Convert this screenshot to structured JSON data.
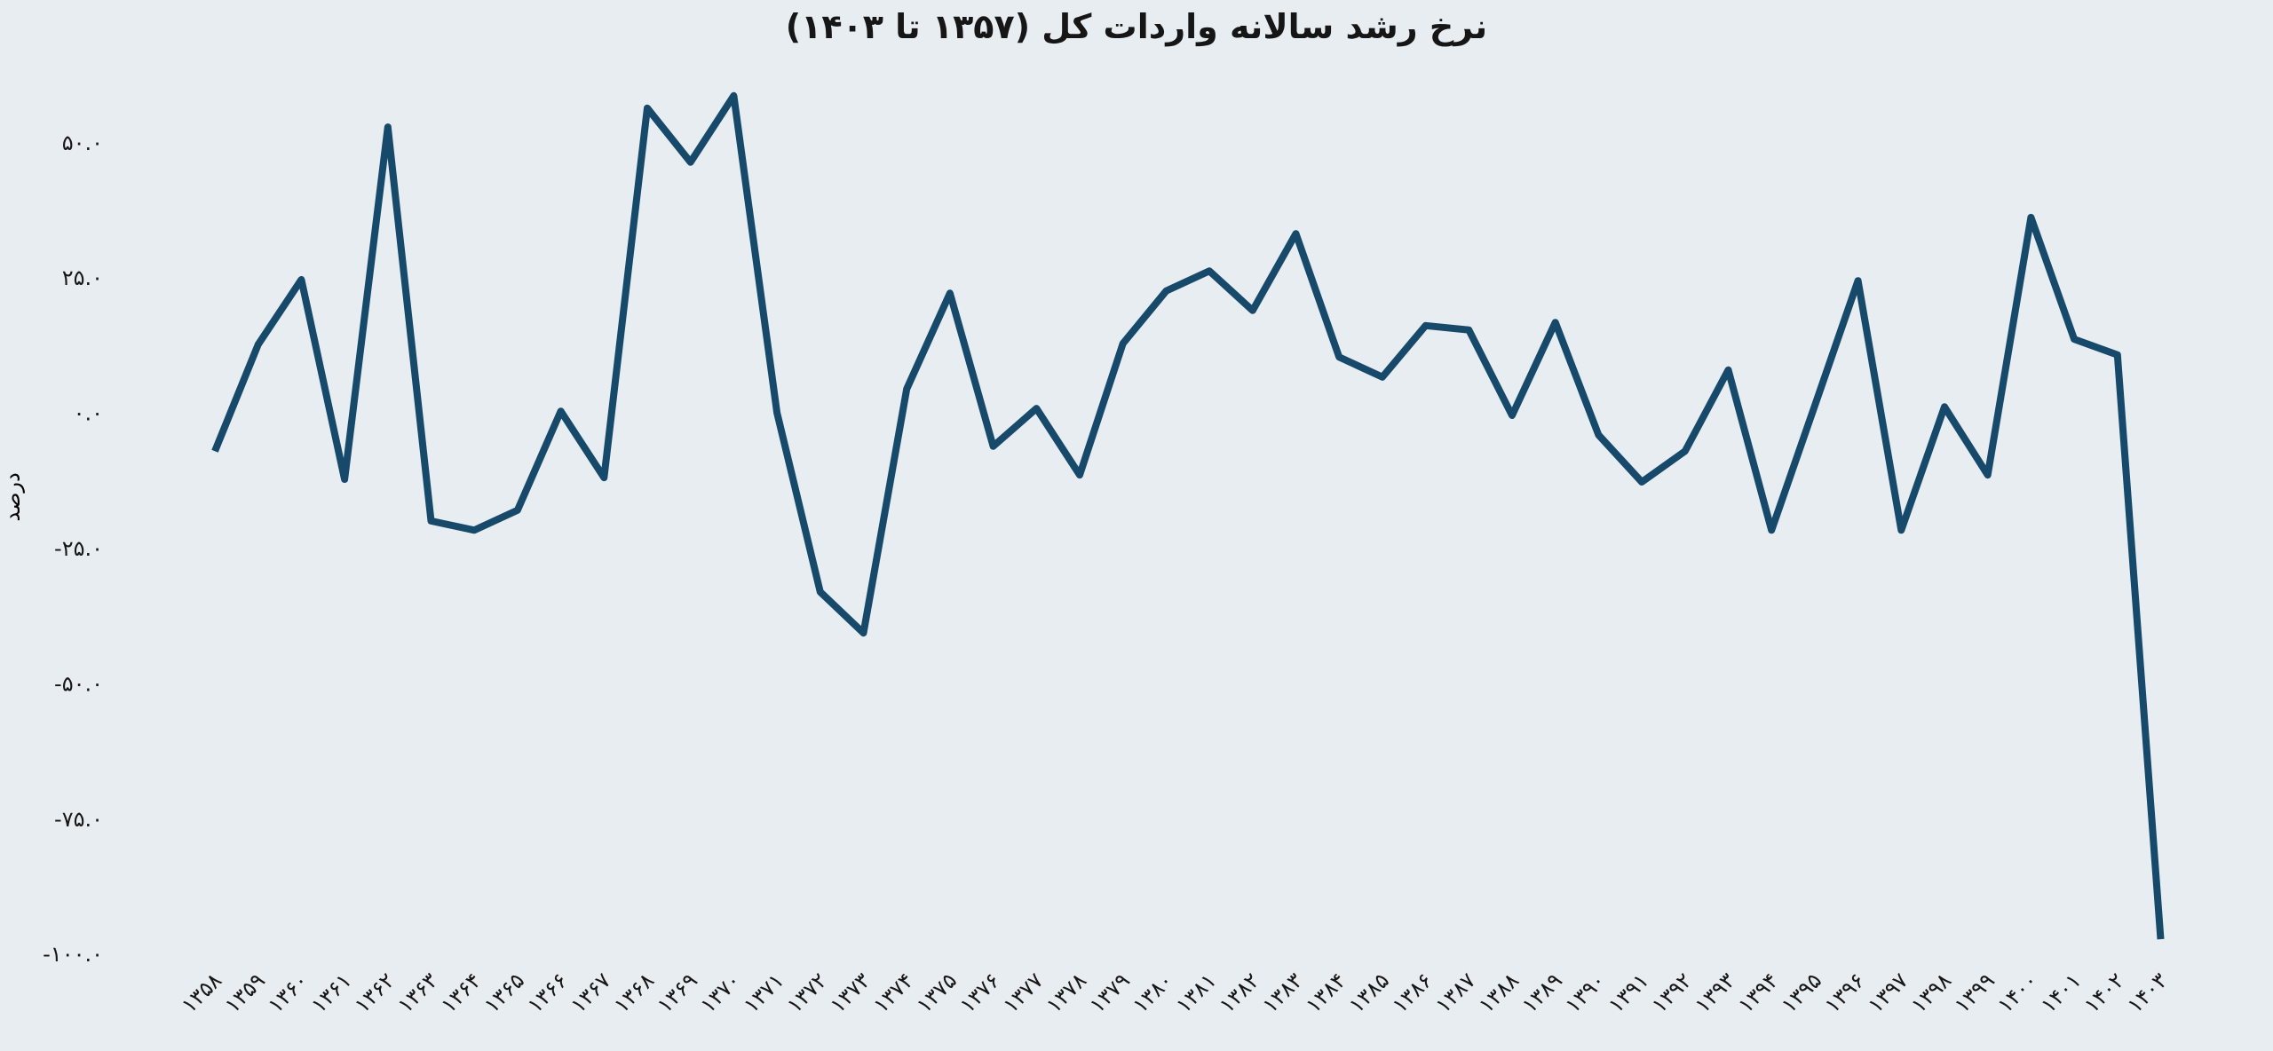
{
  "page": {
    "background_color": "#e8edf2",
    "text_color": "#161616"
  },
  "chart_data": {
    "type": "line",
    "title": "نرخ رشد سالانه واردات کل (۱۳۵۷ تا ۱۴۰۳)",
    "xlabel": "",
    "ylabel": "درصد",
    "line_color": "#17496b",
    "grid": false,
    "legend_position": "none",
    "ylim": [
      -102,
      67
    ],
    "categories": [
      "۱۳۵۸",
      "۱۳۵۹",
      "۱۳۶۰",
      "۱۳۶۱",
      "۱۳۶۲",
      "۱۳۶۳",
      "۱۳۶۴",
      "۱۳۶۵",
      "۱۳۶۶",
      "۱۳۶۷",
      "۱۳۶۸",
      "۱۳۶۹",
      "۱۳۷۰",
      "۱۳۷۱",
      "۱۳۷۲",
      "۱۳۷۳",
      "۱۳۷۴",
      "۱۳۷۵",
      "۱۳۷۶",
      "۱۳۷۷",
      "۱۳۷۸",
      "۱۳۷۹",
      "۱۳۸۰",
      "۱۳۸۱",
      "۱۳۸۲",
      "۱۳۸۳",
      "۱۳۸۴",
      "۱۳۸۵",
      "۱۳۸۶",
      "۱۳۸۷",
      "۱۳۸۸",
      "۱۳۸۹",
      "۱۳۹۰",
      "۱۳۹۱",
      "۱۳۹۲",
      "۱۳۹۳",
      "۱۳۹۴",
      "۱۳۹۵",
      "۱۳۹۶",
      "۱۳۹۷",
      "۱۳۹۸",
      "۱۳۹۹",
      "۱۴۰۰",
      "۱۴۰۱",
      "۱۴۰۲",
      "۱۴۰۳"
    ],
    "values": [
      -7.0,
      12.7,
      24.7,
      -12.2,
      52.9,
      -19.9,
      -21.6,
      -17.9,
      0.4,
      -11.9,
      56.4,
      46.4,
      58.7,
      0.1,
      -33.0,
      -40.6,
      4.5,
      22.2,
      -6.1,
      0.9,
      -11.4,
      12.9,
      22.6,
      26.3,
      19.0,
      33.2,
      10.4,
      6.7,
      16.2,
      15.4,
      -0.4,
      16.8,
      -4.0,
      -12.7,
      -7.0,
      8.0,
      -21.6,
      1.4,
      24.5,
      -21.6,
      1.2,
      -11.4,
      36.2,
      13.7,
      10.8,
      -97.2
    ],
    "y_ticks": {
      "values": [
        50,
        25,
        0,
        -25,
        -50,
        -75,
        -100
      ],
      "labels": [
        "۵۰.۰",
        "۲۵.۰",
        "۰.۰",
        "-۲۵.۰",
        "-۵۰.۰",
        "-۷۵.۰",
        "-۱۰۰.۰"
      ]
    }
  }
}
